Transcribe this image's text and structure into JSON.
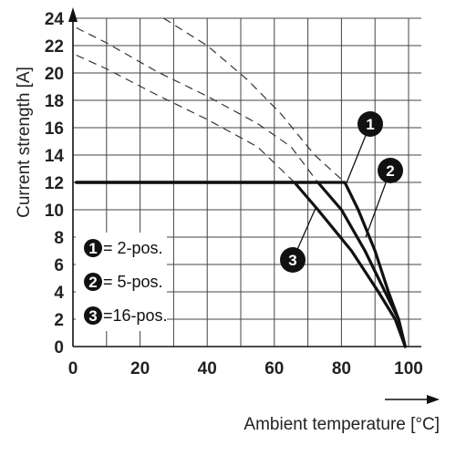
{
  "chart_data": {
    "type": "line",
    "title": "",
    "xlabel": "Ambient temperature [°C]",
    "ylabel": "Current strength [A]",
    "xlim": [
      0,
      100
    ],
    "ylim": [
      0,
      24
    ],
    "x_ticks": [
      0,
      20,
      40,
      60,
      80,
      100
    ],
    "y_ticks": [
      0,
      2,
      4,
      6,
      8,
      10,
      12,
      14,
      16,
      18,
      20,
      22,
      24
    ],
    "grid": true,
    "legend_position": "bottom-left",
    "legend": [
      {
        "badge": "1",
        "text": "= 2-pos."
      },
      {
        "badge": "2",
        "text": "= 5-pos."
      },
      {
        "badge": "3",
        "text": "=16-pos."
      }
    ],
    "series": [
      {
        "name": "2-pos.",
        "badge": "1",
        "style": "solid",
        "points": [
          [
            1,
            12
          ],
          [
            81,
            12
          ],
          [
            85,
            10
          ],
          [
            90,
            7
          ],
          [
            94,
            4
          ],
          [
            97,
            2
          ],
          [
            99,
            0
          ]
        ]
      },
      {
        "name": "5-pos.",
        "badge": "2",
        "style": "solid",
        "points": [
          [
            1,
            12
          ],
          [
            73,
            12
          ],
          [
            80,
            10
          ],
          [
            87,
            7
          ],
          [
            93,
            4
          ],
          [
            97,
            2
          ],
          [
            99,
            0
          ]
        ]
      },
      {
        "name": "16-pos.",
        "badge": "3",
        "style": "solid",
        "points": [
          [
            1,
            12
          ],
          [
            66,
            12
          ],
          [
            73,
            10
          ],
          [
            83,
            7
          ],
          [
            91,
            4
          ],
          [
            96,
            2
          ],
          [
            99,
            0
          ]
        ]
      },
      {
        "name": "2-pos. (dashed)",
        "style": "dashed",
        "points": [
          [
            27,
            24
          ],
          [
            40,
            22
          ],
          [
            52,
            19.5
          ],
          [
            62,
            17
          ],
          [
            72,
            14
          ],
          [
            81,
            12
          ]
        ]
      },
      {
        "name": "5-pos. (dashed)",
        "style": "dashed",
        "points": [
          [
            1,
            23.3
          ],
          [
            10,
            22.2
          ],
          [
            25,
            20.1
          ],
          [
            40,
            18.3
          ],
          [
            55,
            16.3
          ],
          [
            65,
            14.6
          ],
          [
            73,
            12
          ]
        ]
      },
      {
        "name": "16-pos. (dashed)",
        "style": "dashed",
        "points": [
          [
            1,
            21.3
          ],
          [
            10,
            20.3
          ],
          [
            25,
            18.4
          ],
          [
            40,
            16.6
          ],
          [
            55,
            14.6
          ],
          [
            66,
            12
          ]
        ]
      }
    ]
  }
}
